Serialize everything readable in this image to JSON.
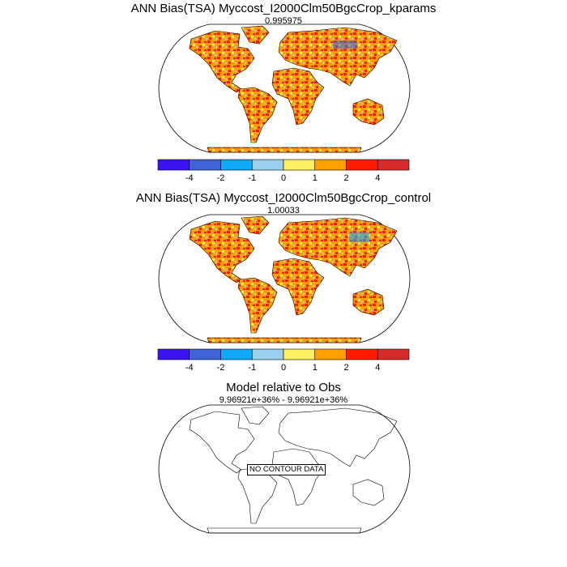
{
  "panels": [
    {
      "title": "ANN Bias(TSA) Myccost_I2000Clm50BgcCrop_kparams",
      "subtitle": "0.995975",
      "has_data": true
    },
    {
      "title": "ANN Bias(TSA) Myccost_I2000Clm50BgcCrop_control",
      "subtitle": "1.00033",
      "has_data": true
    },
    {
      "title": "Model relative to Obs",
      "subtitle": "9.96921e+36% - 9.96921e+36%",
      "has_data": false,
      "no_data_label": "NO CONTOUR DATA"
    }
  ],
  "colorbar": {
    "labels": [
      "-4",
      "-2",
      "-1",
      "0",
      "1",
      "2",
      "4"
    ],
    "colors": [
      "#3c12f0",
      "#4064d8",
      "#10a8f8",
      "#98d0ee",
      "#fff060",
      "#ffa000",
      "#ff1a00",
      "#d42a2a"
    ]
  }
}
